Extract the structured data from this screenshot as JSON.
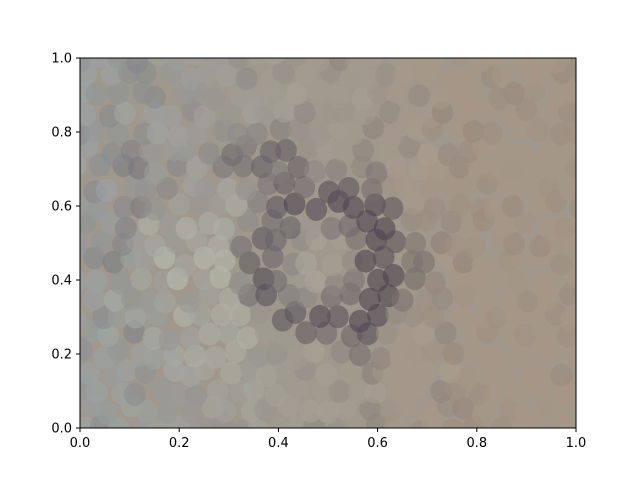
{
  "chart_data": {
    "type": "scatter",
    "title": "",
    "xlabel": "",
    "ylabel": "",
    "xlim": [
      0,
      1
    ],
    "ylim": [
      0,
      1
    ],
    "grid": false,
    "legend": "none",
    "x_ticks": [
      "0.0",
      "0.2",
      "0.4",
      "0.6",
      "0.8",
      "1.0"
    ],
    "y_ticks": [
      "0.0",
      "0.2",
      "0.4",
      "0.6",
      "0.8",
      "1.0"
    ],
    "marker": "ellipse",
    "marker_alpha": 0.6,
    "grid_columns": 25,
    "grid_rows": 20,
    "colors": {
      "background": "#a0988c",
      "light": "#c8cebe",
      "mid": "#8e8a80",
      "dark": "#3c3444",
      "warm": "#a89684",
      "cool": "#9aa4a8"
    },
    "points_description_pattern": "dense ellipse mosaic over the full axes"
  }
}
